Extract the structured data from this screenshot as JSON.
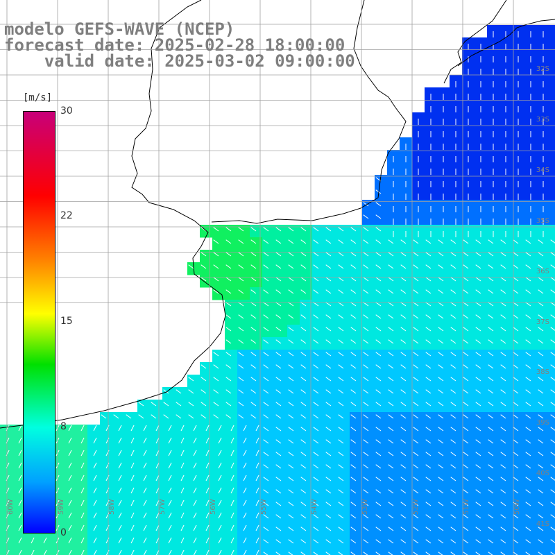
{
  "title": {
    "line1": "modelo GEFS-WAVE (NCEP)",
    "line2": "forecast date: 2025-02-28 18:00:00",
    "line3": "    valid date: 2025-03-02 09:00:00"
  },
  "colorbar": {
    "unit": "[m/s]",
    "ticks": [
      "30",
      "22",
      "15",
      "8",
      "0"
    ],
    "colors": [
      "#c8007a",
      "#ff0000",
      "#ff8000",
      "#ffff00",
      "#00e000",
      "#00ffe0",
      "#00a0ff",
      "#0000ff"
    ]
  },
  "grid": {
    "lat_labels": [
      "32S",
      "33S",
      "34S",
      "35S",
      "36S",
      "37S",
      "38S",
      "39S",
      "40S",
      "41S"
    ],
    "lon_labels": [
      "60W",
      "59W",
      "58W",
      "57W",
      "56W",
      "55W",
      "54W",
      "53W",
      "52W",
      "51W",
      "50W"
    ]
  },
  "colors": {
    "land": "#ffffff",
    "coast": "#000000",
    "grid": "#a0a0a0",
    "arrows": "#ffffff"
  }
}
